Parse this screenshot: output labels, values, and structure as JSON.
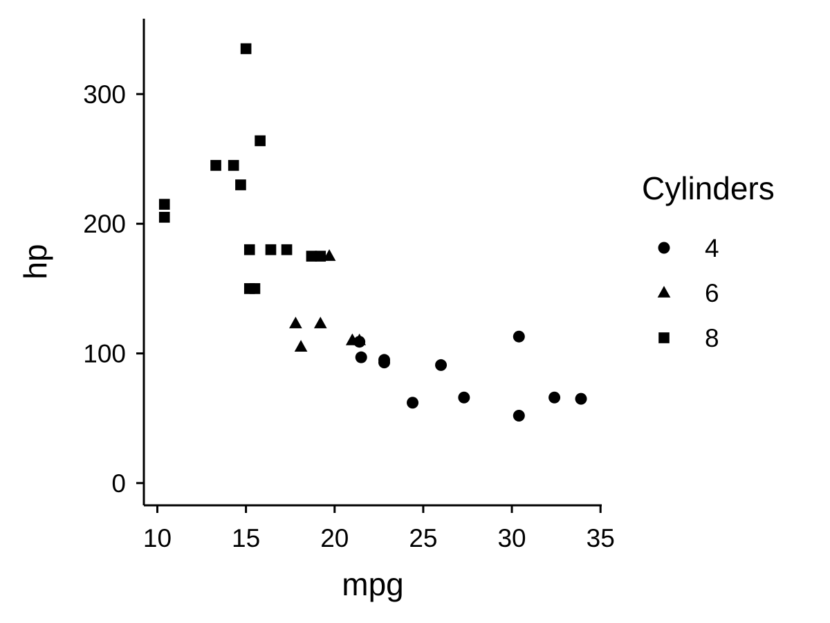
{
  "chart_data": {
    "type": "scatter",
    "title": "",
    "xlabel": "mpg",
    "ylabel": "hp",
    "xlim": [
      9.24,
      35.07
    ],
    "ylim": [
      -17.15,
      358.15
    ],
    "x_ticks": [
      10,
      15,
      20,
      25,
      30,
      35
    ],
    "y_ticks": [
      0,
      100,
      200,
      300
    ],
    "grid": false,
    "legend": {
      "title": "Cylinders",
      "placement": "right"
    },
    "color": "#000000",
    "series": [
      {
        "name": "4",
        "marker": "circle",
        "points": [
          {
            "x": 22.8,
            "y": 93
          },
          {
            "x": 24.4,
            "y": 62
          },
          {
            "x": 22.8,
            "y": 95
          },
          {
            "x": 32.4,
            "y": 66
          },
          {
            "x": 30.4,
            "y": 52
          },
          {
            "x": 33.9,
            "y": 65
          },
          {
            "x": 21.5,
            "y": 97
          },
          {
            "x": 27.3,
            "y": 66
          },
          {
            "x": 26.0,
            "y": 91
          },
          {
            "x": 30.4,
            "y": 113
          },
          {
            "x": 21.4,
            "y": 109
          }
        ]
      },
      {
        "name": "6",
        "marker": "triangle",
        "points": [
          {
            "x": 21.0,
            "y": 110
          },
          {
            "x": 21.0,
            "y": 110
          },
          {
            "x": 21.4,
            "y": 110
          },
          {
            "x": 18.1,
            "y": 105
          },
          {
            "x": 19.2,
            "y": 123
          },
          {
            "x": 17.8,
            "y": 123
          },
          {
            "x": 19.7,
            "y": 175
          }
        ]
      },
      {
        "name": "8",
        "marker": "square",
        "points": [
          {
            "x": 18.7,
            "y": 175
          },
          {
            "x": 14.3,
            "y": 245
          },
          {
            "x": 16.4,
            "y": 180
          },
          {
            "x": 17.3,
            "y": 180
          },
          {
            "x": 15.2,
            "y": 180
          },
          {
            "x": 10.4,
            "y": 205
          },
          {
            "x": 10.4,
            "y": 215
          },
          {
            "x": 14.7,
            "y": 230
          },
          {
            "x": 15.5,
            "y": 150
          },
          {
            "x": 15.2,
            "y": 150
          },
          {
            "x": 13.3,
            "y": 245
          },
          {
            "x": 19.2,
            "y": 175
          },
          {
            "x": 15.8,
            "y": 264
          },
          {
            "x": 15.0,
            "y": 335
          }
        ]
      }
    ]
  }
}
